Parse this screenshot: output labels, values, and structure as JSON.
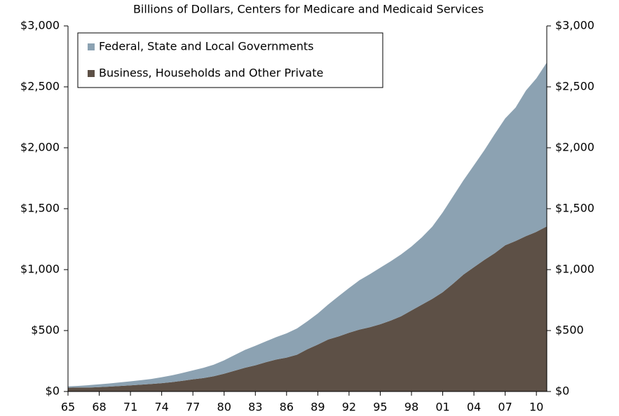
{
  "chart_data": {
    "type": "stacked_area",
    "subtitle": "Billions of Dollars, Centers for Medicare and Medicaid Services",
    "categories": [
      "65",
      null,
      null,
      "68",
      null,
      null,
      "71",
      null,
      null,
      "74",
      null,
      null,
      "77",
      null,
      null,
      "80",
      null,
      null,
      "83",
      null,
      null,
      "86",
      null,
      null,
      "89",
      null,
      null,
      "92",
      null,
      null,
      "95",
      null,
      null,
      "98",
      null,
      null,
      "01",
      null,
      null,
      "04",
      null,
      null,
      "07",
      null,
      null,
      "10",
      null
    ],
    "series": [
      {
        "name": "Federal, State and Local Governments",
        "color": "#8ca2b2",
        "values": [
          11,
          14,
          20,
          23,
          26,
          30,
          33,
          37,
          41,
          49,
          56,
          64,
          73,
          84,
          95,
          110,
          129,
          146,
          160,
          171,
          184,
          199,
          215,
          229,
          255,
          287,
          330,
          367,
          405,
          436,
          464,
          486,
          508,
          525,
          552,
          593,
          655,
          717,
          774,
          836,
          900,
          978,
          1041,
          1095,
          1195,
          1260,
          1345
        ]
      },
      {
        "name": "Business, Households and Other Private",
        "color": "#5d5046",
        "values": [
          31,
          32,
          32,
          36,
          40,
          45,
          50,
          56,
          62,
          68,
          77,
          88,
          100,
          110,
          125,
          146,
          170,
          195,
          215,
          240,
          262,
          278,
          302,
          347,
          385,
          427,
          452,
          482,
          508,
          527,
          552,
          582,
          617,
          665,
          713,
          760,
          815,
          885,
          960,
          1020,
          1080,
          1135,
          1200,
          1235,
          1275,
          1310,
          1355
        ]
      }
    ],
    "ylim": [
      0,
      3000
    ],
    "yticks": [
      {
        "value": 0,
        "label": "$0"
      },
      {
        "value": 500,
        "label": "$500"
      },
      {
        "value": 1000,
        "label": "$1,000"
      },
      {
        "value": 1500,
        "label": "$1,500"
      },
      {
        "value": 2000,
        "label": "$2,000"
      },
      {
        "value": 2500,
        "label": "$2,500"
      },
      {
        "value": 3000,
        "label": "$3,000"
      }
    ],
    "y2lim": [
      0,
      3000
    ],
    "y2ticks": [
      {
        "value": 0,
        "label": "$0"
      },
      {
        "value": 500,
        "label": "$500"
      },
      {
        "value": 1000,
        "label": "$1,000"
      },
      {
        "value": 1500,
        "label": "$1,500"
      },
      {
        "value": 2000,
        "label": "$2,000"
      },
      {
        "value": 2500,
        "label": "$2,500"
      },
      {
        "value": 3000,
        "label": "$3,000"
      }
    ],
    "legend": "upper left"
  }
}
